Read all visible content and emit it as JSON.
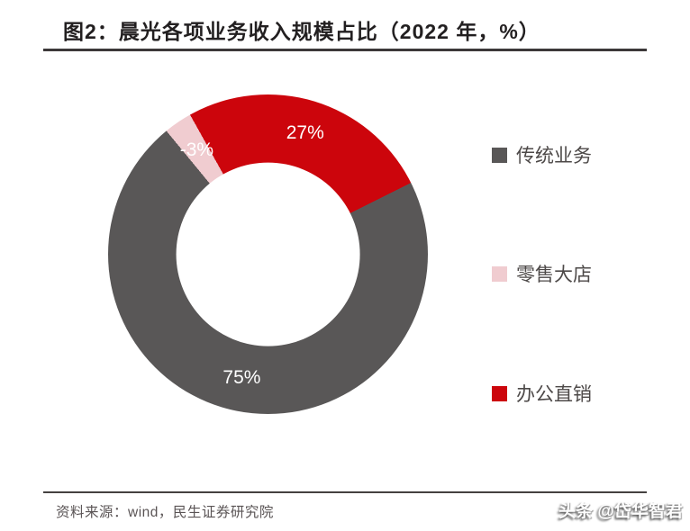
{
  "header": {
    "title": "图2：晨光各项业务收入规模占比（2022 年，%）"
  },
  "chart_data": {
    "type": "pie",
    "subtype": "donut",
    "title": "图2：晨光各项业务收入规模占比（2022 年，%）",
    "categories": [
      "传统业务",
      "零售大店",
      "办公直销"
    ],
    "values": [
      75,
      -3,
      27
    ],
    "labels": [
      "75%",
      "-3%",
      "27%"
    ],
    "colors": [
      "#595757",
      "#f0ccd0",
      "#cc050c"
    ],
    "label_color": "#ffffff",
    "legend_position": "right",
    "first_slice_angle_deg": 63.4,
    "donut_hole_ratio": 0.577,
    "label_radius_ratio": 0.79
  },
  "footer": {
    "source": "资料来源：wind，民生证券研究院",
    "watermark": "头条 @岱华智君"
  }
}
